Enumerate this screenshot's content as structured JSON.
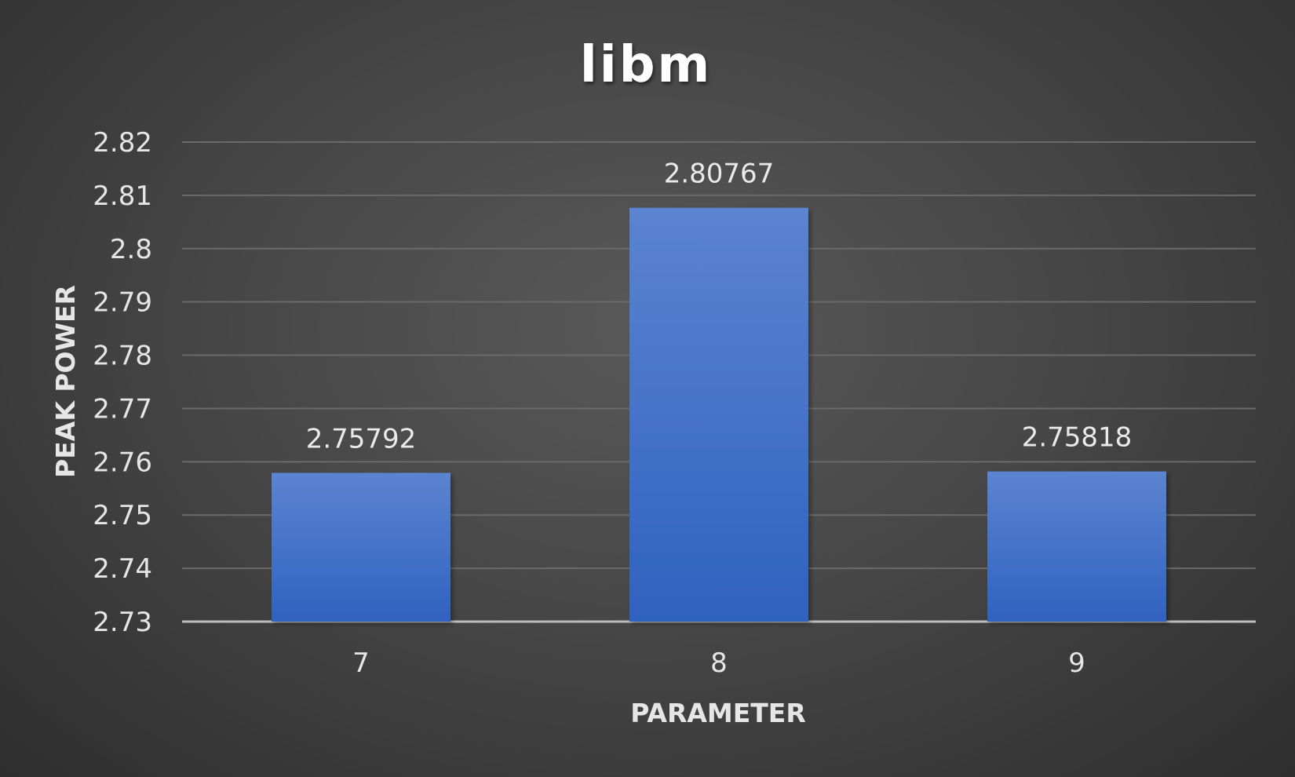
{
  "chart_data": {
    "type": "bar",
    "title": "libm",
    "xlabel": "PARAMETER",
    "ylabel": "PEAK POWER",
    "categories": [
      "7",
      "8",
      "9"
    ],
    "values": [
      2.75792,
      2.80767,
      2.75818
    ],
    "data_labels": [
      "2.75792",
      "2.80767",
      "2.75818"
    ],
    "ylim": [
      2.73,
      2.82
    ],
    "y_ticks": [
      2.73,
      2.74,
      2.75,
      2.76,
      2.77,
      2.78,
      2.79,
      2.8,
      2.81,
      2.82
    ],
    "y_tick_labels": [
      "2.73",
      "2.74",
      "2.75",
      "2.76",
      "2.77",
      "2.78",
      "2.79",
      "2.8",
      "2.81",
      "2.82"
    ],
    "grid": true,
    "legend": "none",
    "colors": {
      "bar_top": "#5b84d0",
      "bar_bottom": "#2f62bf",
      "background_center": "#595959",
      "background_edge": "#2e2e2e"
    }
  }
}
